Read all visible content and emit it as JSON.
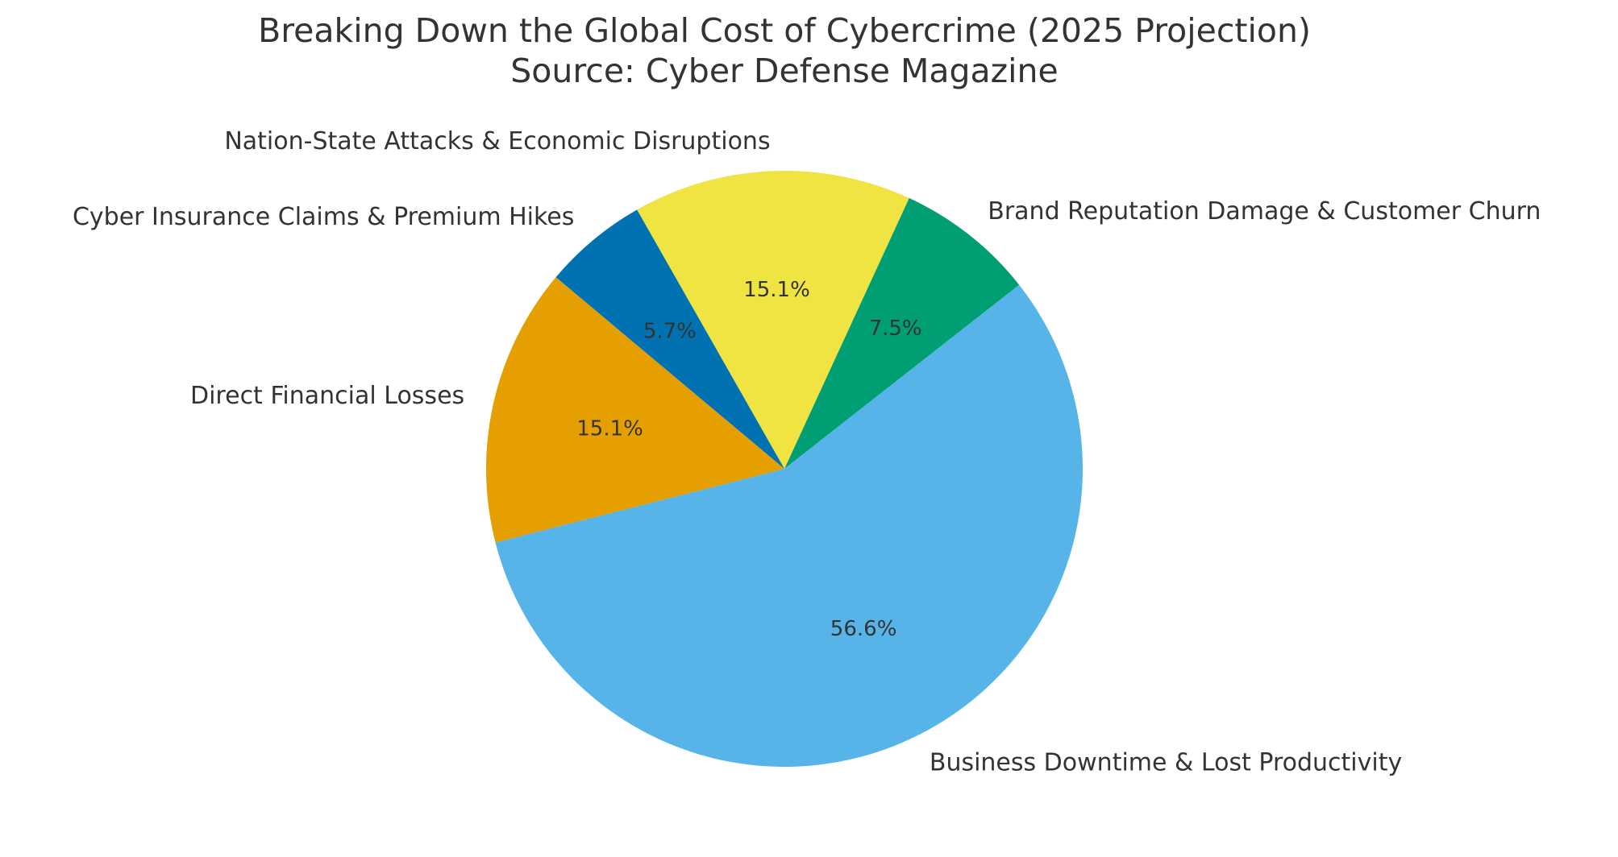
{
  "chart_data": {
    "type": "pie",
    "title": "Breaking Down the Global Cost of Cybercrime (2025 Projection)",
    "subtitle": "Source: Cyber Defense Magazine",
    "start_angle_deg": 140,
    "direction": "counterclockwise",
    "slices": [
      {
        "label": "Direct Financial Losses",
        "value": 1.6,
        "percent_label": "15.1%",
        "color": "#E69F00"
      },
      {
        "label": "Business Downtime & Lost Productivity",
        "value": 6.0,
        "percent_label": "56.6%",
        "color": "#56B4E9"
      },
      {
        "label": "Brand Reputation Damage & Customer Churn",
        "value": 0.8,
        "percent_label": "7.5%",
        "color": "#009E73"
      },
      {
        "label": "Nation-State Attacks & Economic Disruptions",
        "value": 1.6,
        "percent_label": "15.1%",
        "color": "#F0E442"
      },
      {
        "label": "Cyber Insurance Claims & Premium Hikes",
        "value": 0.6,
        "percent_label": "5.7%",
        "color": "#0072B2"
      }
    ]
  }
}
